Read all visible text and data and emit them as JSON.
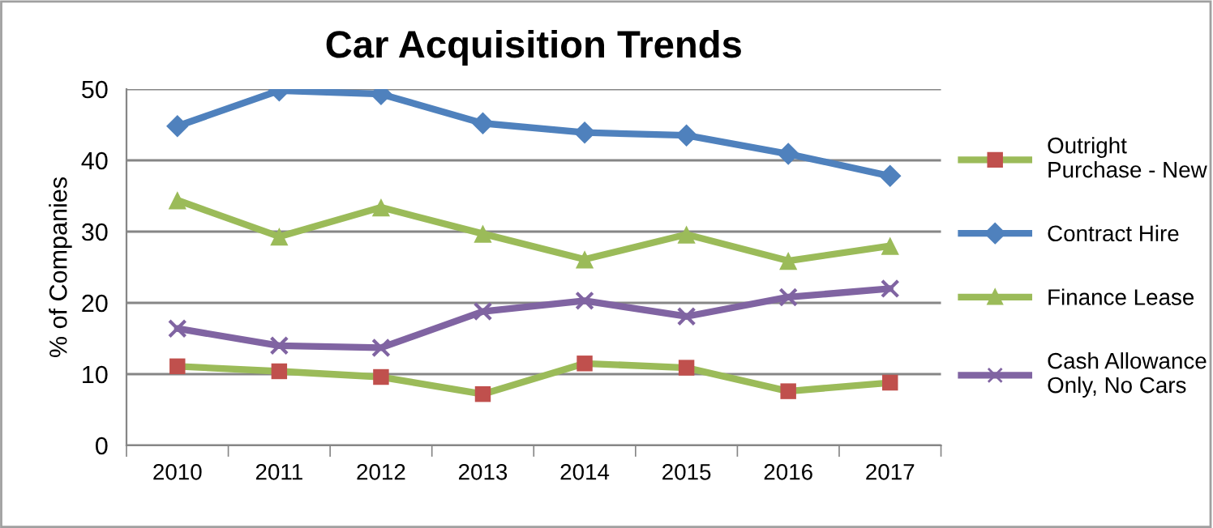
{
  "chart_data": {
    "type": "line",
    "title": "Car Acquisition Trends",
    "ylabel": "% of Companies",
    "categories": [
      "2010",
      "2011",
      "2012",
      "2013",
      "2014",
      "2015",
      "2016",
      "2017"
    ],
    "series": [
      {
        "name": "Outright Purchase - New",
        "color": "#9bbb59",
        "colors": [
          "#c0504d",
          "#c0504d",
          "#c0504d",
          "#c0504d",
          "#c0504d",
          "#c0504d",
          "#c0504d",
          "#c0504d"
        ],
        "marker": "square",
        "values": [
          11.1,
          10.4,
          9.6,
          7.2,
          11.5,
          10.9,
          7.6,
          8.8
        ]
      },
      {
        "name": "Contract Hire",
        "color": "#4f81bd",
        "marker": "diamond",
        "values": [
          44.8,
          49.8,
          49.3,
          45.2,
          43.9,
          43.5,
          40.9,
          37.8
        ]
      },
      {
        "name": "Finance Lease",
        "color": "#9bbb59",
        "marker": "triangle",
        "values": [
          34.4,
          29.3,
          33.4,
          29.7,
          26.1,
          29.6,
          25.9,
          28.0
        ]
      },
      {
        "name": "Cash Allowance Only, No Cars",
        "color": "#8064a2",
        "marker": "cross",
        "values": [
          16.4,
          14.0,
          13.7,
          18.8,
          20.3,
          18.1,
          20.8,
          22.0
        ]
      }
    ],
    "ylim": [
      0,
      50
    ],
    "yticks": [
      0,
      10,
      20,
      30,
      40,
      50
    ],
    "grid": "y",
    "legend": "right",
    "line_style": "solid"
  }
}
